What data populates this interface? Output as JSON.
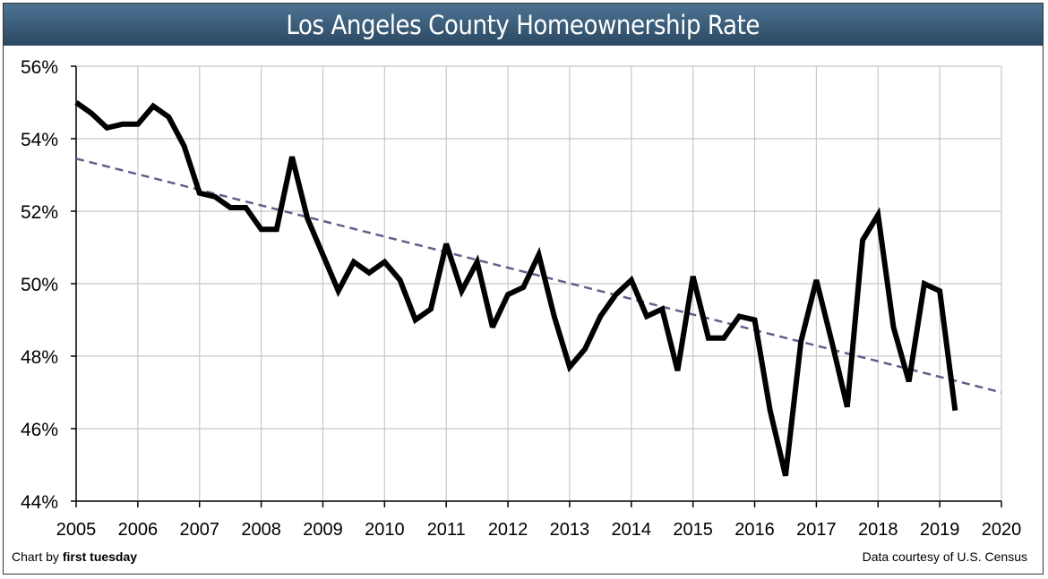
{
  "chart_data": {
    "type": "line",
    "title": "Los Angeles County Homeownership Rate",
    "xlabel": "",
    "ylabel": "",
    "xlim": [
      2005,
      2020
    ],
    "ylim": [
      44,
      56
    ],
    "x_ticks": [
      "2005",
      "2006",
      "2007",
      "2008",
      "2009",
      "2010",
      "2011",
      "2012",
      "2013",
      "2014",
      "2015",
      "2016",
      "2017",
      "2018",
      "2019",
      "2020"
    ],
    "y_ticks": [
      "44%",
      "46%",
      "48%",
      "50%",
      "52%",
      "54%",
      "56%"
    ],
    "grid": true,
    "series": [
      {
        "color": "#000000",
        "x": [
          2005,
          2005.25,
          2005.5,
          2005.75,
          2006,
          2006.25,
          2006.5,
          2006.75,
          2007,
          2007.25,
          2007.5,
          2007.75,
          2008,
          2008.25,
          2008.5,
          2008.75,
          2009,
          2009.25,
          2009.5,
          2009.75,
          2010,
          2010.25,
          2010.5,
          2010.75,
          2011,
          2011.25,
          2011.5,
          2011.75,
          2012,
          2012.25,
          2012.5,
          2012.75,
          2013,
          2013.25,
          2013.5,
          2013.75,
          2014,
          2014.25,
          2014.5,
          2014.75,
          2015,
          2015.25,
          2015.5,
          2015.75,
          2016,
          2016.25,
          2016.5,
          2016.75,
          2017,
          2017.25,
          2017.5,
          2017.75,
          2018,
          2018.25,
          2018.5,
          2018.75,
          2019,
          2019.25
        ],
        "values": [
          55.0,
          54.7,
          54.3,
          54.4,
          54.4,
          54.9,
          54.6,
          53.8,
          52.5,
          52.4,
          52.1,
          52.1,
          51.5,
          51.5,
          53.5,
          51.8,
          50.8,
          49.8,
          50.6,
          50.3,
          50.6,
          50.1,
          49.0,
          49.3,
          51.1,
          49.8,
          50.6,
          48.8,
          49.7,
          49.9,
          50.8,
          49.1,
          47.7,
          48.2,
          49.1,
          49.7,
          50.1,
          49.1,
          49.3,
          47.6,
          50.2,
          48.5,
          48.5,
          49.1,
          49.0,
          46.5,
          44.7,
          48.4,
          50.1,
          48.4,
          46.6,
          51.2,
          51.9,
          48.8,
          47.3,
          50.0,
          49.8,
          46.5
        ]
      }
    ],
    "trendline": {
      "type": "linear",
      "style": "dashed",
      "color": "#6b5a8a",
      "x": [
        2005,
        2020
      ],
      "values": [
        53.45,
        47.0
      ]
    }
  },
  "footer": {
    "credit_prefix": "Chart by ",
    "credit_brand": "first tuesday",
    "source": "Data courtesy of U.S. Census"
  },
  "colors": {
    "title_bar": "#3b5c78",
    "grid": "#c8c8c8"
  }
}
